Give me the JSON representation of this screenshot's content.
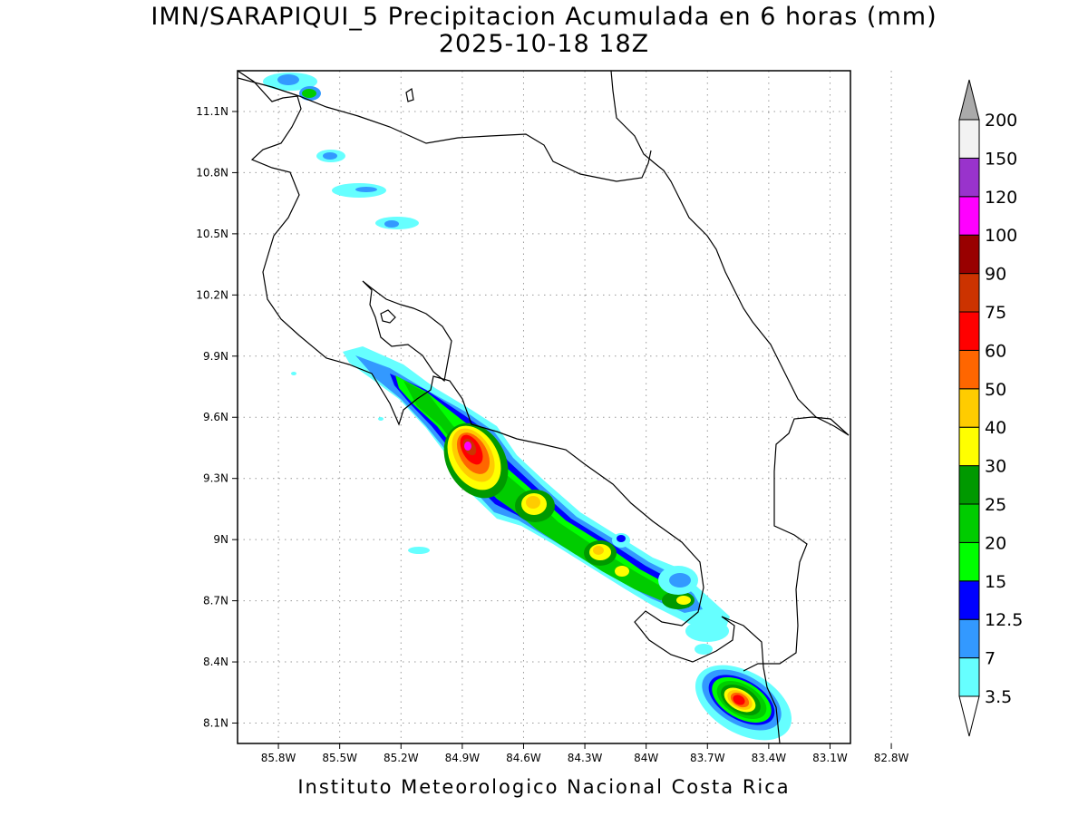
{
  "header": {
    "title": "IMN/SARAPIQUI_5 Precipitacion Acumulada en 6 horas (mm)",
    "subtitle": "2025-10-18 18Z"
  },
  "footer": {
    "credit": "Instituto Meteorologico Nacional Costa Rica"
  },
  "map": {
    "lon_range": [
      -86.0,
      -83.0
    ],
    "lat_range": [
      8.0,
      11.3
    ],
    "grid": "dotted",
    "lat_ticks": [
      {
        "value": 11.1,
        "label": "11.1N"
      },
      {
        "value": 10.8,
        "label": "10.8N"
      },
      {
        "value": 10.5,
        "label": "10.5N"
      },
      {
        "value": 10.2,
        "label": "10.2N"
      },
      {
        "value": 9.9,
        "label": "9.9N"
      },
      {
        "value": 9.6,
        "label": "9.6N"
      },
      {
        "value": 9.3,
        "label": "9.3N"
      },
      {
        "value": 9.0,
        "label": "9N"
      },
      {
        "value": 8.7,
        "label": "8.7N"
      },
      {
        "value": 8.4,
        "label": "8.4N"
      },
      {
        "value": 8.1,
        "label": "8.1N"
      }
    ],
    "lon_ticks": [
      {
        "value": -85.8,
        "label": "85.8W"
      },
      {
        "value": -85.5,
        "label": "85.5W"
      },
      {
        "value": -85.2,
        "label": "85.2W"
      },
      {
        "value": -84.9,
        "label": "84.9W"
      },
      {
        "value": -84.6,
        "label": "84.6W"
      },
      {
        "value": -84.3,
        "label": "84.3W"
      },
      {
        "value": -84.0,
        "label": "84W"
      },
      {
        "value": -83.7,
        "label": "83.7W"
      },
      {
        "value": -83.4,
        "label": "83.4W"
      },
      {
        "value": -83.1,
        "label": "83.1W"
      },
      {
        "value": -82.8,
        "label": "82.8W"
      }
    ]
  },
  "colorbar": {
    "units": "mm",
    "levels": [
      {
        "label": "3.5",
        "color": "#66ffff"
      },
      {
        "label": "7",
        "color": "#3399ff"
      },
      {
        "label": "12.5",
        "color": "#0000ff"
      },
      {
        "label": "15",
        "color": "#00ff00"
      },
      {
        "label": "20",
        "color": "#00cc00"
      },
      {
        "label": "25",
        "color": "#009900"
      },
      {
        "label": "30",
        "color": "#ffff00"
      },
      {
        "label": "40",
        "color": "#ffcc00"
      },
      {
        "label": "50",
        "color": "#ff6600"
      },
      {
        "label": "60",
        "color": "#ff0000"
      },
      {
        "label": "75",
        "color": "#cc3300"
      },
      {
        "label": "90",
        "color": "#990000"
      },
      {
        "label": "100",
        "color": "#ff00ff"
      },
      {
        "label": "120",
        "color": "#9933cc"
      },
      {
        "label": "150",
        "color": "#f2f2f2"
      },
      {
        "label": "200",
        "color": "#aaaaaa"
      }
    ]
  }
}
